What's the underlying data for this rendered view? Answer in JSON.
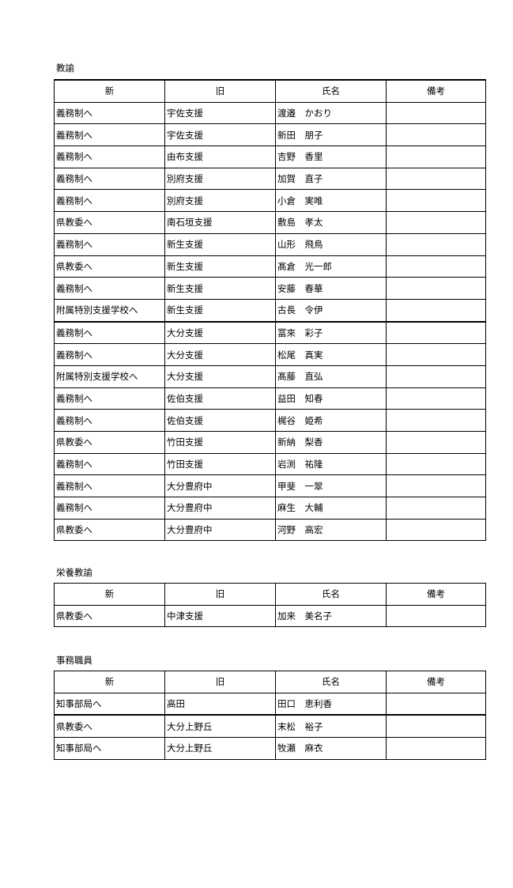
{
  "headers": [
    "新",
    "旧",
    "氏名",
    "備考"
  ],
  "sections": [
    {
      "title": "教諭",
      "rows": [
        [
          "義務制へ",
          "宇佐支援",
          "渡邉　かおり",
          ""
        ],
        [
          "義務制へ",
          "宇佐支援",
          "新田　朋子",
          ""
        ],
        [
          "義務制へ",
          "由布支援",
          "吉野　香里",
          ""
        ],
        [
          "義務制へ",
          "別府支援",
          "加賀　直子",
          ""
        ],
        [
          "義務制へ",
          "別府支援",
          "小倉　実唯",
          ""
        ],
        [
          "県教委へ",
          "南石垣支援",
          "敷島　孝太",
          ""
        ],
        [
          "義務制へ",
          "新生支援",
          "山形　飛鳥",
          ""
        ],
        [
          "県教委へ",
          "新生支援",
          "髙倉　光一郎",
          ""
        ],
        [
          "義務制へ",
          "新生支援",
          "安藤　春華",
          ""
        ],
        [
          "附属特別支援学校へ",
          "新生支援",
          "古長　令伊",
          ""
        ],
        [
          "義務制へ",
          "大分支援",
          "冨來　彩子",
          ""
        ],
        [
          "義務制へ",
          "大分支援",
          "松尾　真実",
          ""
        ],
        [
          "附属特別支援学校へ",
          "大分支援",
          "髙藤　直弘",
          ""
        ],
        [
          "義務制へ",
          "佐伯支援",
          "益田　知春",
          ""
        ],
        [
          "義務制へ",
          "佐伯支援",
          "梶谷　姫希",
          ""
        ],
        [
          "県教委へ",
          "竹田支援",
          "新納　梨香",
          ""
        ],
        [
          "義務制へ",
          "竹田支援",
          "岩渕　祐隆",
          ""
        ],
        [
          "義務制へ",
          "大分豊府中",
          "甲斐　一翠",
          ""
        ],
        [
          "義務制へ",
          "大分豊府中",
          "麻生　大輔",
          ""
        ],
        [
          "県教委へ",
          "大分豊府中",
          "河野　高宏",
          ""
        ]
      ]
    },
    {
      "title": "栄養教諭",
      "rows": [
        [
          "県教委へ",
          "中津支援",
          "加来　美名子",
          ""
        ]
      ]
    },
    {
      "title": "事務職員",
      "rows": [
        [
          "知事部局へ",
          "高田",
          "田口　恵利香",
          ""
        ],
        [
          "県教委へ",
          "大分上野丘",
          "末松　裕子",
          ""
        ],
        [
          "知事部局へ",
          "大分上野丘",
          "牧瀬　麻衣",
          ""
        ]
      ]
    }
  ]
}
